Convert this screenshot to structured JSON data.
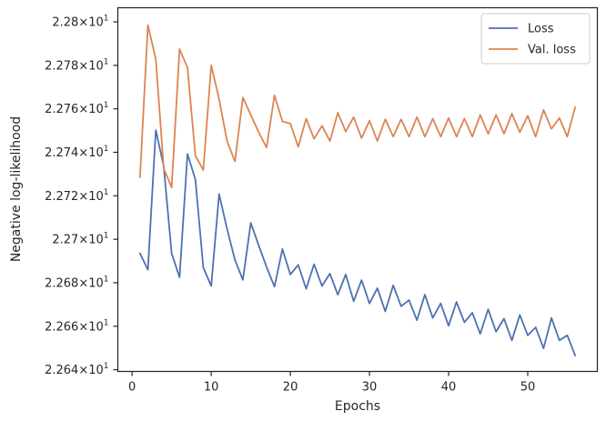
{
  "chart_data": {
    "type": "line",
    "xlabel": "Epochs",
    "ylabel": "Negative log-likelihood",
    "xlim": [
      -1.8,
      58.8
    ],
    "ylim": [
      22.6392,
      22.8065
    ],
    "x_ticks": [
      0,
      10,
      20,
      30,
      40,
      50
    ],
    "y_ticks": [
      {
        "value": 22.64,
        "mantissa": "2.264"
      },
      {
        "value": 22.66,
        "mantissa": "2.266"
      },
      {
        "value": 22.68,
        "mantissa": "2.268"
      },
      {
        "value": 22.7,
        "mantissa": "2.27"
      },
      {
        "value": 22.72,
        "mantissa": "2.272"
      },
      {
        "value": 22.74,
        "mantissa": "2.274"
      },
      {
        "value": 22.76,
        "mantissa": "2.276"
      },
      {
        "value": 22.78,
        "mantissa": "2.278"
      },
      {
        "value": 22.8,
        "mantissa": "2.28"
      }
    ],
    "tick_multiplier": "×10",
    "tick_exponent": "1",
    "legend_position": "top-right",
    "grid": false,
    "x": [
      1,
      2,
      3,
      4,
      5,
      6,
      7,
      8,
      9,
      10,
      11,
      12,
      13,
      14,
      15,
      16,
      17,
      18,
      19,
      20,
      21,
      22,
      23,
      24,
      25,
      26,
      27,
      28,
      29,
      30,
      31,
      32,
      33,
      34,
      35,
      36,
      37,
      38,
      39,
      40,
      41,
      42,
      43,
      44,
      45,
      46,
      47,
      48,
      49,
      50,
      51,
      52,
      53,
      54,
      55,
      56
    ],
    "series": [
      {
        "name": "Loss",
        "color": "#4c72b0",
        "values": [
          22.6935,
          22.686,
          22.7502,
          22.7335,
          22.6935,
          22.6825,
          22.7392,
          22.7275,
          22.687,
          22.6785,
          22.7208,
          22.7048,
          22.6905,
          22.6813,
          22.7075,
          22.6972,
          22.6872,
          22.6782,
          22.6955,
          22.6838,
          22.6882,
          22.6772,
          22.6885,
          22.6785,
          22.6842,
          22.6745,
          22.6838,
          22.6715,
          22.6812,
          22.6705,
          22.6775,
          22.6668,
          22.6788,
          22.6692,
          22.672,
          22.6628,
          22.6745,
          22.6638,
          22.6705,
          22.6602,
          22.6712,
          22.6618,
          22.6662,
          22.6565,
          22.6678,
          22.6575,
          22.6635,
          22.6535,
          22.6652,
          22.6558,
          22.6595,
          22.6498,
          22.6638,
          22.6535,
          22.6558,
          22.6465
        ]
      },
      {
        "name": "Val. loss",
        "color": "#dd8452",
        "values": [
          22.7285,
          22.7985,
          22.7828,
          22.7325,
          22.7238,
          22.7875,
          22.779,
          22.7385,
          22.7318,
          22.78,
          22.7645,
          22.7452,
          22.7358,
          22.7652,
          22.7572,
          22.7492,
          22.7422,
          22.7662,
          22.7542,
          22.7532,
          22.7425,
          22.7555,
          22.7462,
          22.7522,
          22.7452,
          22.7582,
          22.7495,
          22.7562,
          22.7465,
          22.7545,
          22.7452,
          22.7552,
          22.7472,
          22.7552,
          22.7472,
          22.7562,
          22.7472,
          22.7555,
          22.7472,
          22.7558,
          22.7472,
          22.7555,
          22.7472,
          22.7572,
          22.7485,
          22.7572,
          22.7485,
          22.7578,
          22.7492,
          22.7568,
          22.7472,
          22.7595,
          22.7508,
          22.7558,
          22.7472,
          22.7608
        ]
      }
    ]
  }
}
